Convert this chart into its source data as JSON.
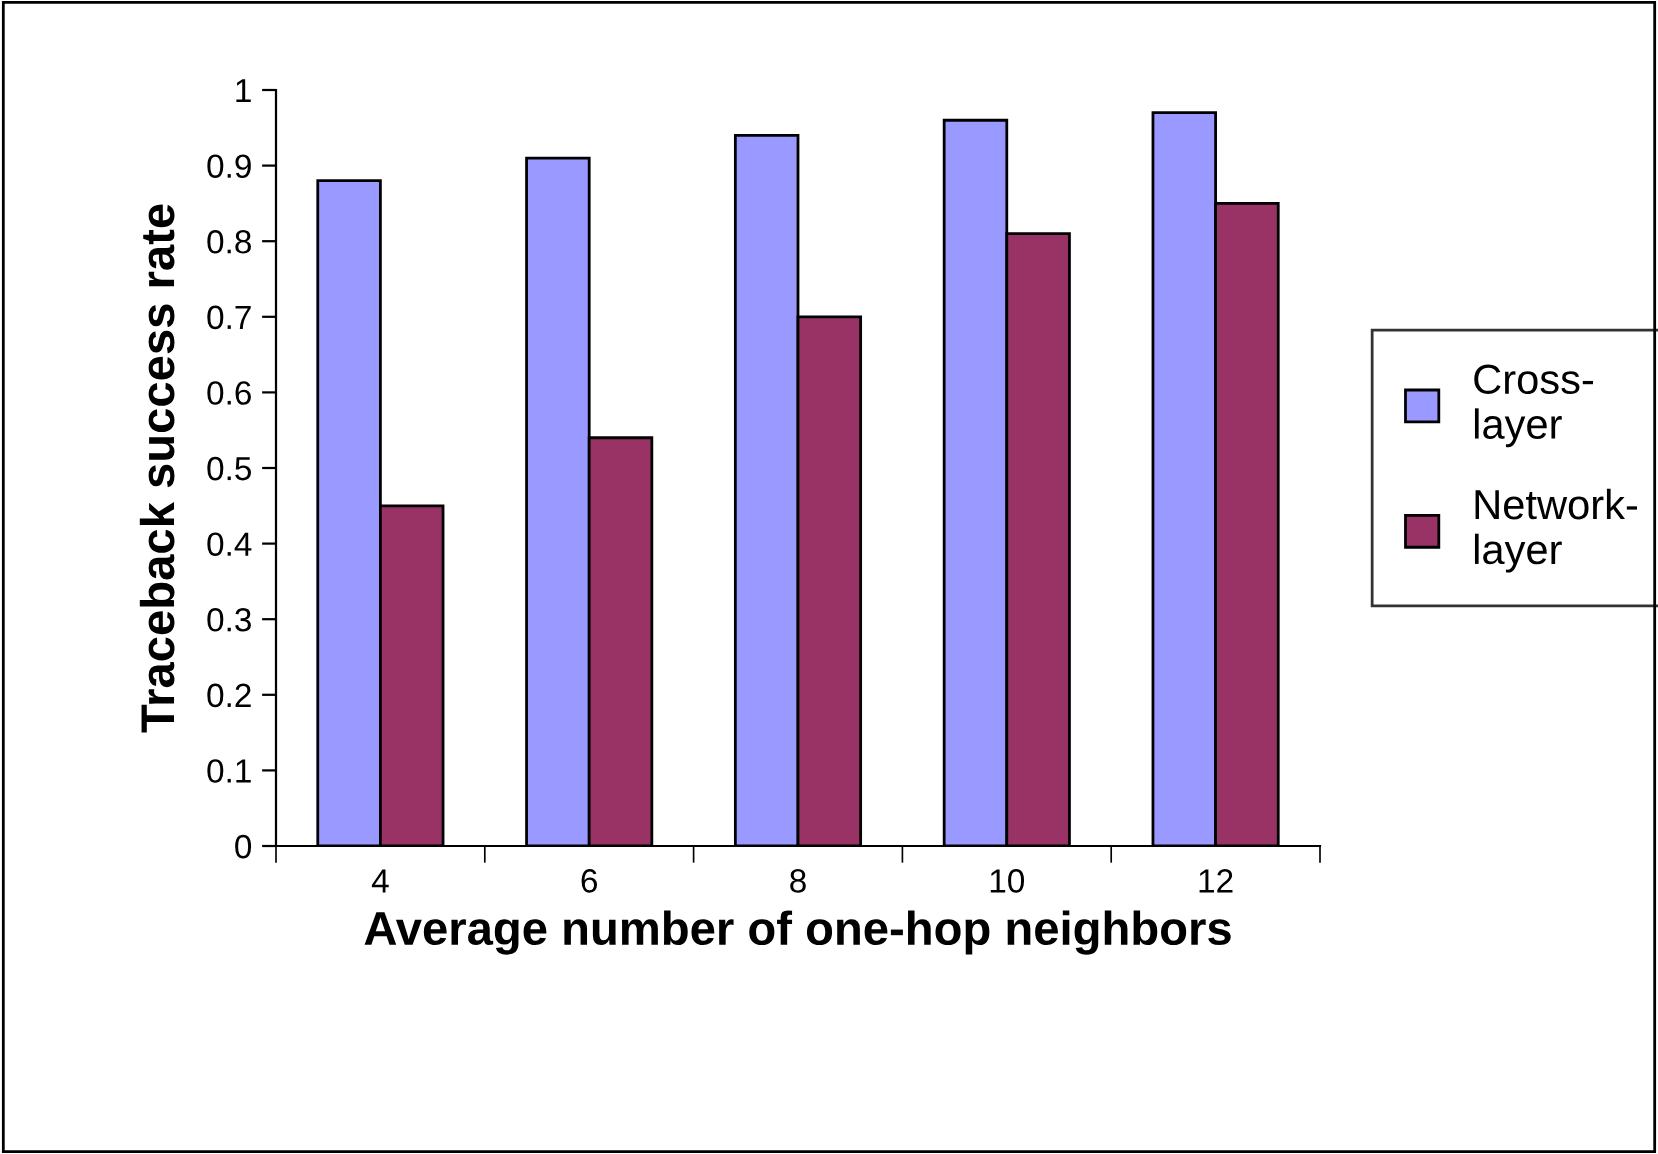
{
  "chart_data": {
    "type": "bar",
    "xlabel": "Average number of one-hop neighbors",
    "ylabel": "Traceback success rate",
    "categories": [
      "4",
      "6",
      "8",
      "10",
      "12"
    ],
    "series": [
      {
        "name": "Cross-layer",
        "color": "#9999ff",
        "values": [
          0.88,
          0.91,
          0.94,
          0.96,
          0.97
        ]
      },
      {
        "name": "Network-layer",
        "color": "#993366",
        "values": [
          0.45,
          0.54,
          0.7,
          0.81,
          0.85
        ]
      }
    ],
    "ylim": [
      0,
      1
    ],
    "yticks": [
      0,
      0.1,
      0.2,
      0.3,
      0.4,
      0.5,
      0.6,
      0.7,
      0.8,
      0.9,
      1
    ],
    "grid": false,
    "legend": "right"
  }
}
